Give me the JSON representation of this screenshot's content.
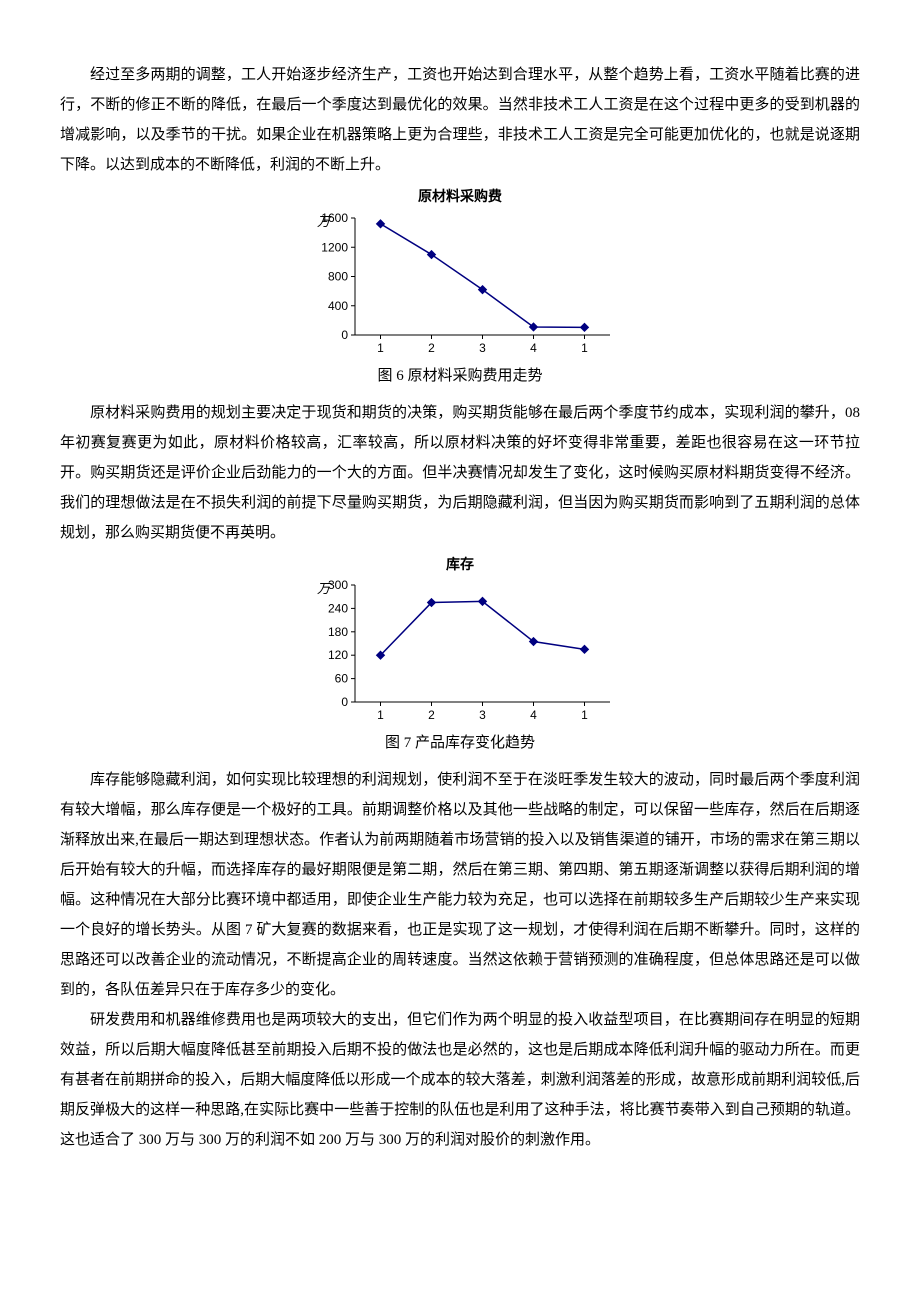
{
  "para1": "经过至多两期的调整，工人开始逐步经济生产，工资也开始达到合理水平，从整个趋势上看，工资水平随着比赛的进行，不断的修正不断的降低，在最后一个季度达到最优化的效果。当然非技术工人工资是在这个过程中更多的受到机器的增减影响，以及季节的干扰。如果企业在机器策略上更为合理些，非技术工人工资是完全可能更加优化的，也就是说逐期下降。以达到成本的不断降低，利润的不断上升。",
  "chart6": {
    "type": "line",
    "title": "原材料采购费",
    "caption": "图 6  原材料采购费用走势",
    "unit": "万",
    "x_labels": [
      "1",
      "2",
      "3",
      "4",
      "1"
    ],
    "y_ticks": [
      0,
      400,
      800,
      1200,
      1600
    ],
    "ylim": [
      0,
      1600
    ],
    "values": [
      1520,
      1100,
      620,
      110,
      105
    ],
    "line_color": "#000080",
    "line_width": 1.5,
    "marker": "diamond",
    "marker_size": 4,
    "axis_color": "#000000",
    "background": "#ffffff",
    "label_fontsize": 12,
    "title_fontsize": 14
  },
  "para2": "原材料采购费用的规划主要决定于现货和期货的决策，购买期货能够在最后两个季度节约成本，实现利润的攀升，08 年初赛复赛更为如此，原材料价格较高，汇率较高，所以原材料决策的好坏变得非常重要，差距也很容易在这一环节拉开。购买期货还是评价企业后劲能力的一个大的方面。但半决赛情况却发生了变化，这时候购买原材料期货变得不经济。我们的理想做法是在不损失利润的前提下尽量购买期货，为后期隐藏利润，但当因为购买期货而影响到了五期利润的总体规划，那么购买期货便不再英明。",
  "chart7": {
    "type": "line",
    "title": "库存",
    "caption": "图 7  产品库存变化趋势",
    "unit": "万",
    "x_labels": [
      "1",
      "2",
      "3",
      "4",
      "1"
    ],
    "y_ticks": [
      0,
      60,
      120,
      180,
      240,
      300
    ],
    "ylim": [
      0,
      300
    ],
    "values": [
      120,
      255,
      258,
      155,
      135
    ],
    "line_color": "#000080",
    "line_width": 1.5,
    "marker": "diamond",
    "marker_size": 4,
    "axis_color": "#000000",
    "background": "#ffffff",
    "label_fontsize": 12,
    "title_fontsize": 14
  },
  "para3": "库存能够隐藏利润，如何实现比较理想的利润规划，使利润不至于在淡旺季发生较大的波动，同时最后两个季度利润有较大增幅，那么库存便是一个极好的工具。前期调整价格以及其他一些战略的制定，可以保留一些库存，然后在后期逐渐释放出来,在最后一期达到理想状态。作者认为前两期随着市场营销的投入以及销售渠道的铺开，市场的需求在第三期以后开始有较大的升幅，而选择库存的最好期限便是第二期，然后在第三期、第四期、第五期逐渐调整以获得后期利润的增幅。这种情况在大部分比赛环境中都适用，即使企业生产能力较为充足，也可以选择在前期较多生产后期较少生产来实现一个良好的增长势头。从图 7 矿大复赛的数据来看，也正是实现了这一规划，才使得利润在后期不断攀升。同时，这样的思路还可以改善企业的流动情况，不断提高企业的周转速度。当然这依赖于营销预测的准确程度，但总体思路还是可以做到的，各队伍差异只在于库存多少的变化。",
  "para4": "研发费用和机器维修费用也是两项较大的支出，但它们作为两个明显的投入收益型项目，在比赛期间存在明显的短期效益，所以后期大幅度降低甚至前期投入后期不投的做法也是必然的，这也是后期成本降低利润升幅的驱动力所在。而更有甚者在前期拼命的投入，后期大幅度降低以形成一个成本的较大落差，刺激利润落差的形成，故意形成前期利润较低,后期反弹极大的这样一种思路,在实际比赛中一些善于控制的队伍也是利用了这种手法，将比赛节奏带入到自己预期的轨道。这也适合了 300 万与 300 万的利润不如 200 万与 300 万的利润对股价的刺激作用。"
}
